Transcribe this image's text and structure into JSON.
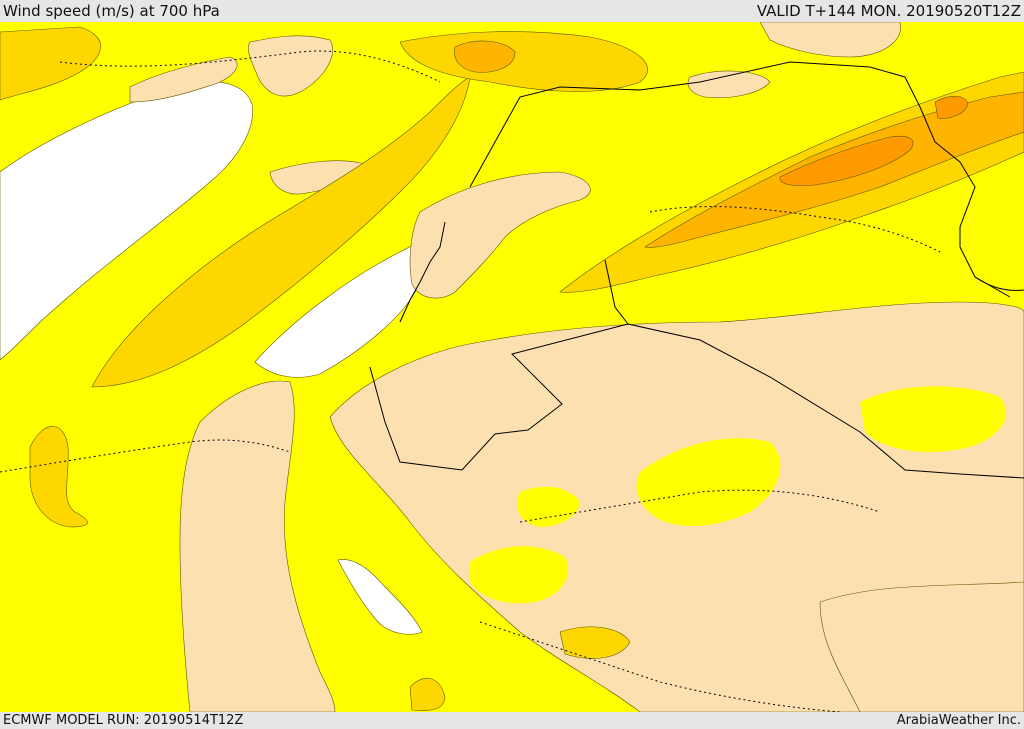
{
  "header": {
    "title": "Wind speed (m/s) at 700 hPa",
    "valid": "VALID T+144 MON. 20190520T12Z"
  },
  "footer": {
    "model_run": "ECMWF MODEL RUN: 20190514T12Z",
    "credit": "ArabiaWeather Inc."
  },
  "colors": {
    "water": "#ffffff",
    "calm": "#fde0b0",
    "light": "#ffff00",
    "moderate": "#ffd700",
    "fresh": "#ffb400",
    "strong": "#ff9a00",
    "border": "#000000"
  }
}
